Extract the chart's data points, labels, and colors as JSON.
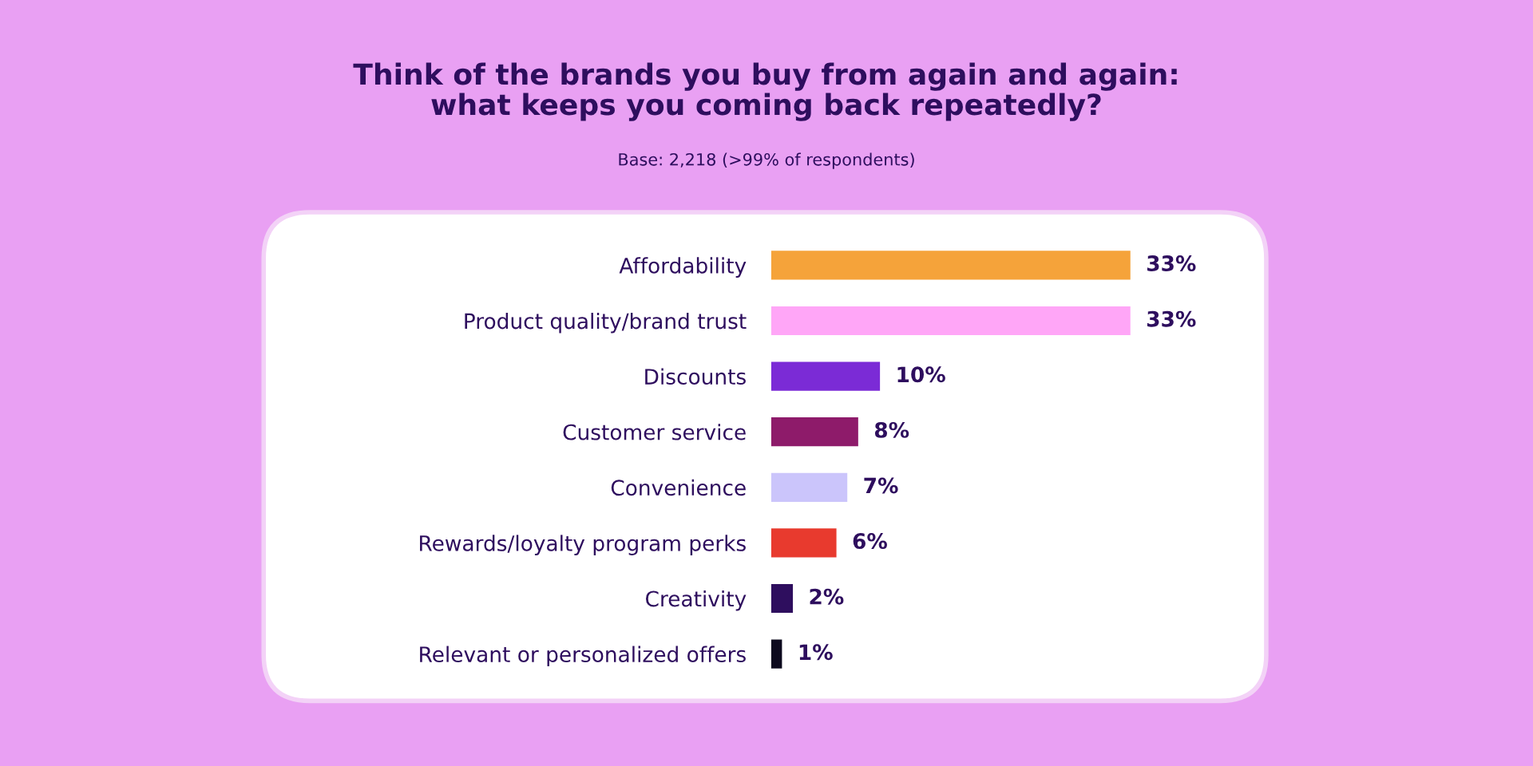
{
  "chart_data": {
    "type": "bar",
    "orientation": "horizontal",
    "title": "Think of the brands you buy from again and again:\nwhat keeps you coming back repeatedly?",
    "subtitle": "Base: 2,218 (>99% of respondents)",
    "categories": [
      "Affordability",
      "Product quality/brand trust",
      "Discounts",
      "Customer service",
      "Convenience",
      "Rewards/loyalty program perks",
      "Creativity",
      "Relevant or personalized offers"
    ],
    "values": [
      33,
      33,
      10,
      8,
      7,
      6,
      2,
      1
    ],
    "colors": [
      "#f5a33a",
      "#ffa6f7",
      "#7b2bd6",
      "#8e1b6a",
      "#cbc5fb",
      "#e83a2e",
      "#2e0e5e",
      "#0d0a1e"
    ],
    "value_labels": [
      "33%",
      "33%",
      "10%",
      "8%",
      "7%",
      "6%",
      "2%",
      "1%"
    ],
    "grid": false,
    "legend": false
  }
}
